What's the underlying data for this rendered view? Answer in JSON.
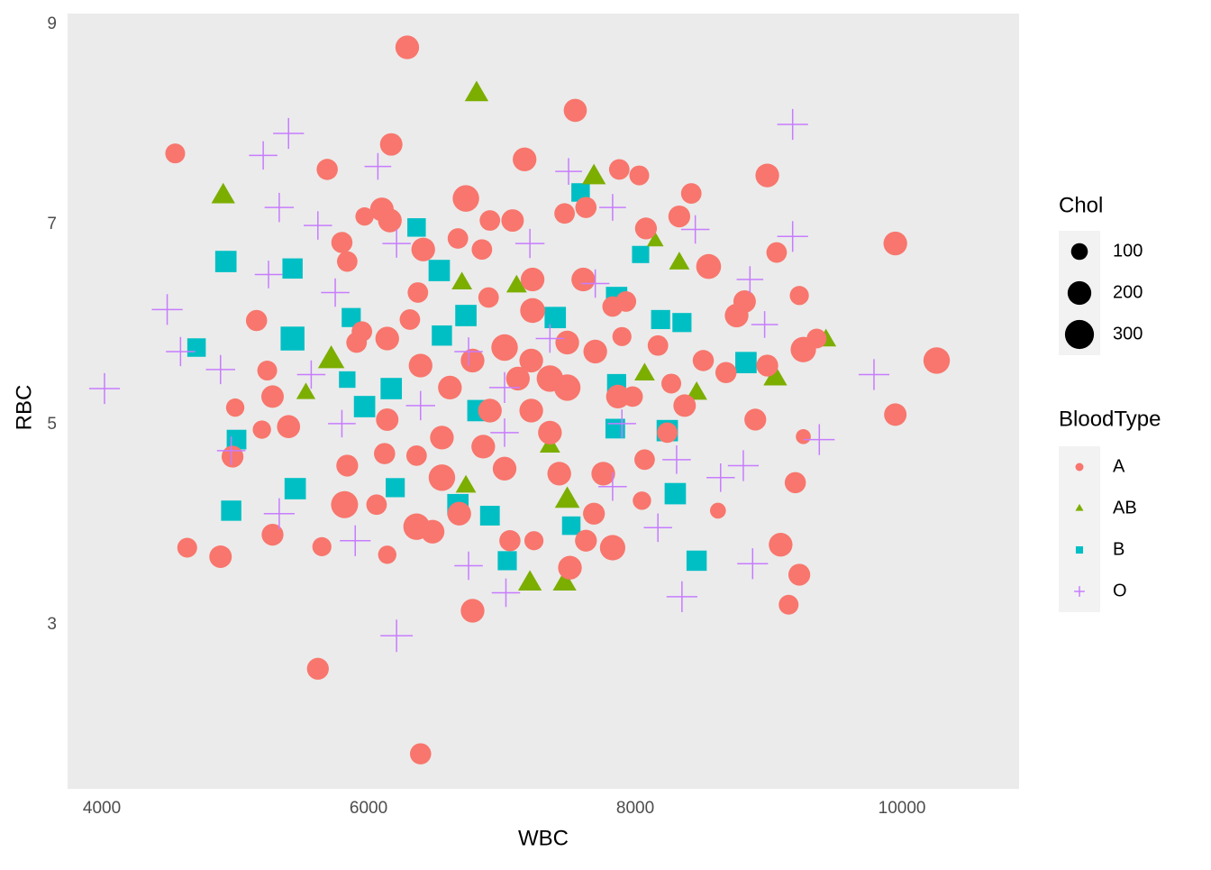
{
  "chart_data": {
    "type": "scatter",
    "x_label": "WBC",
    "y_label": "RBC",
    "xlim": [
      3743,
      10878
    ],
    "ylim": [
      1.36,
      9.108
    ],
    "xticks": [
      4000,
      6000,
      8000,
      10000
    ],
    "yticks": [
      3,
      5,
      7,
      9
    ],
    "grid": true,
    "size_legend": {
      "title": "Chol",
      "values": [
        100,
        200,
        300
      ]
    },
    "color_legend_title": "BloodType",
    "series": [
      {
        "name": "B",
        "color": "#00BFC4",
        "shape": "square",
        "x": [
          4930,
          4710,
          5430,
          5430,
          5870,
          5840,
          6170,
          5970,
          5010,
          4970,
          5450,
          6200,
          6360,
          7590,
          8040,
          7860,
          6530,
          6730,
          7400,
          8190,
          8350,
          8830,
          7860,
          7850,
          8240,
          6820,
          6910,
          6670,
          7040,
          7520,
          8460,
          8300,
          6550
        ],
        "y": [
          6.63,
          5.77,
          6.56,
          5.86,
          6.07,
          5.45,
          5.36,
          5.18,
          4.85,
          4.14,
          4.36,
          4.37,
          6.97,
          7.32,
          6.7,
          6.27,
          6.54,
          6.09,
          6.07,
          6.05,
          6.02,
          5.62,
          5.41,
          4.96,
          4.94,
          5.14,
          4.09,
          4.2,
          3.64,
          3.99,
          3.64,
          4.31,
          5.89
        ],
        "size": [
          200,
          150,
          180,
          250,
          160,
          120,
          200,
          200,
          170,
          180,
          200,
          160,
          150,
          150,
          130,
          200,
          200,
          200,
          200,
          160,
          160,
          200,
          160,
          170,
          200,
          200,
          170,
          200,
          160,
          150,
          180,
          200,
          180
        ]
      },
      {
        "name": "AB",
        "color": "#7CAE00",
        "shape": "triangle",
        "x": [
          6810,
          4910,
          7690,
          6700,
          7110,
          8330,
          8150,
          9430,
          5720,
          5530,
          8070,
          8460,
          9050,
          7360,
          6730,
          7490,
          7210,
          7470
        ],
        "y": [
          8.3,
          7.28,
          7.47,
          6.41,
          6.38,
          6.61,
          6.83,
          5.84,
          5.64,
          5.31,
          5.5,
          5.31,
          5.46,
          4.78,
          4.38,
          4.24,
          3.41,
          3.41
        ],
        "size": [
          200,
          200,
          200,
          150,
          150,
          150,
          100,
          150,
          250,
          130,
          150,
          160,
          200,
          150,
          150,
          220,
          200,
          200
        ]
      },
      {
        "name": "A",
        "color": "#F8766D",
        "shape": "circle",
        "x": [
          6290,
          7550,
          4550,
          6170,
          5690,
          7170,
          8990,
          7880,
          6730,
          6100,
          9950,
          9060,
          8550,
          9230,
          8820,
          10260,
          9950,
          9260,
          9360,
          8990,
          8900,
          9260,
          9200,
          9090,
          9230,
          9150,
          8620,
          7830,
          6780,
          6390,
          5620,
          4640,
          4890,
          5650,
          5280,
          5820,
          4980,
          5000,
          5200,
          5240,
          5160,
          5280,
          5400,
          5840,
          6140,
          6060,
          6360,
          7060,
          7240,
          7510,
          7690,
          8050,
          8270,
          8370,
          8680,
          8510,
          8760,
          8420,
          8030,
          8330,
          8080,
          6910,
          7080,
          6160,
          6410,
          6670,
          6850,
          7470,
          7630,
          5970,
          5800,
          5840,
          6370,
          6900,
          7230,
          7610,
          7230,
          7830,
          7900,
          7490,
          7020,
          6780,
          6390,
          5910,
          5950,
          6310,
          6140,
          6610,
          6910,
          7220,
          7490,
          7870,
          7980,
          8240,
          7360,
          6860,
          6550,
          6140,
          6120,
          6360,
          6550,
          7020,
          7430,
          7760,
          8070,
          7630,
          6480,
          6680,
          7220,
          7120,
          7360,
          8170,
          7930,
          7700
        ],
        "y": [
          8.77,
          8.14,
          7.71,
          7.8,
          7.55,
          7.65,
          7.49,
          7.55,
          7.26,
          7.15,
          6.81,
          6.72,
          6.58,
          6.29,
          6.23,
          5.64,
          5.1,
          5.75,
          5.86,
          5.59,
          5.05,
          4.88,
          4.42,
          3.8,
          3.5,
          3.2,
          4.14,
          3.77,
          3.14,
          1.71,
          2.56,
          3.77,
          3.68,
          3.78,
          3.9,
          4.2,
          4.68,
          5.17,
          4.95,
          5.54,
          6.04,
          5.28,
          4.98,
          4.59,
          3.7,
          4.2,
          3.98,
          3.84,
          3.84,
          3.57,
          4.11,
          4.24,
          5.41,
          5.19,
          5.52,
          5.64,
          6.09,
          7.31,
          7.49,
          7.08,
          6.96,
          7.04,
          7.04,
          7.04,
          6.75,
          6.86,
          6.75,
          7.11,
          7.17,
          7.08,
          6.82,
          6.63,
          6.32,
          6.27,
          6.45,
          6.45,
          6.14,
          6.18,
          5.88,
          5.82,
          5.77,
          5.64,
          5.59,
          5.82,
          5.93,
          6.05,
          5.86,
          5.37,
          5.14,
          5.14,
          5.37,
          5.28,
          5.28,
          4.92,
          4.92,
          4.78,
          4.87,
          5.05,
          4.71,
          4.69,
          4.47,
          4.56,
          4.51,
          4.51,
          4.65,
          3.84,
          3.93,
          4.11,
          5.64,
          5.46,
          5.46,
          5.79,
          6.23,
          5.73
        ],
        "size": [
          200,
          190,
          140,
          180,
          160,
          200,
          200,
          150,
          250,
          200,
          200,
          150,
          220,
          130,
          180,
          250,
          180,
          230,
          140,
          170,
          170,
          80,
          160,
          200,
          170,
          140,
          90,
          230,
          200,
          160,
          170,
          140,
          180,
          130,
          170,
          260,
          170,
          120,
          120,
          140,
          160,
          180,
          190,
          170,
          120,
          150,
          250,
          160,
          130,
          200,
          170,
          120,
          140,
          180,
          160,
          160,
          200,
          150,
          140,
          170,
          170,
          150,
          180,
          200,
          200,
          150,
          150,
          150,
          160,
          120,
          160,
          150,
          150,
          150,
          200,
          200,
          220,
          150,
          130,
          200,
          250,
          200,
          200,
          150,
          150,
          150,
          200,
          200,
          200,
          200,
          250,
          200,
          150,
          150,
          200,
          200,
          200,
          180,
          160,
          150,
          250,
          200,
          200,
          200,
          150,
          170,
          200,
          200,
          200,
          200,
          250,
          150,
          150,
          200
        ]
      },
      {
        "name": "O",
        "color": "#C77CFF",
        "shape": "plus",
        "x": [
          9180,
          5400,
          5210,
          5330,
          6070,
          9180,
          4490,
          4020,
          4890,
          4590,
          9790,
          9380,
          8810,
          8640,
          8880,
          8350,
          5900,
          5330,
          4970,
          6210,
          7030,
          6750,
          5620,
          5250,
          5750,
          6210,
          7210,
          7500,
          8450,
          8860,
          8970,
          7830,
          7700,
          7360,
          7020,
          6390,
          7900,
          8310,
          8170,
          7020,
          5800,
          5570,
          6750,
          7830
        ],
        "y": [
          8.0,
          7.91,
          7.69,
          7.17,
          7.58,
          6.88,
          6.15,
          5.36,
          5.55,
          5.73,
          5.5,
          4.85,
          4.59,
          4.47,
          3.61,
          3.28,
          3.84,
          4.11,
          4.74,
          2.89,
          3.32,
          3.59,
          6.99,
          6.5,
          6.32,
          6.81,
          6.81,
          7.53,
          6.95,
          6.45,
          6.0,
          7.17,
          6.41,
          5.86,
          5.37,
          5.19,
          5.01,
          4.65,
          3.97,
          4.92,
          5.01,
          5.5,
          5.73,
          4.38
        ],
        "size": [
          200,
          200,
          170,
          180,
          150,
          200,
          200,
          200,
          180,
          180,
          200,
          200,
          200,
          170,
          200,
          200,
          200,
          200,
          170,
          220,
          170,
          170,
          170,
          160,
          170,
          170,
          180,
          150,
          170,
          150,
          150,
          150,
          170,
          170,
          200,
          180,
          170,
          170,
          170,
          170,
          160,
          170,
          170,
          170
        ]
      }
    ]
  }
}
